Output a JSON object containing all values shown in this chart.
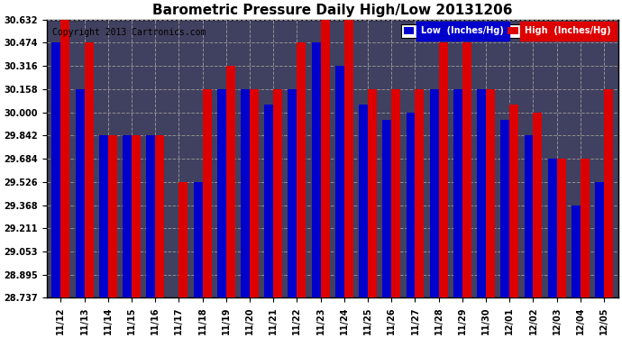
{
  "title": "Barometric Pressure Daily High/Low 20131206",
  "copyright": "Copyright 2013 Cartronics.com",
  "legend_low": "Low  (Inches/Hg)",
  "legend_high": "High  (Inches/Hg)",
  "dates": [
    "11/12",
    "11/13",
    "11/14",
    "11/15",
    "11/16",
    "11/17",
    "11/18",
    "11/19",
    "11/20",
    "11/21",
    "11/22",
    "11/23",
    "11/24",
    "11/25",
    "11/26",
    "11/27",
    "11/28",
    "11/29",
    "11/30",
    "12/01",
    "12/02",
    "12/03",
    "12/04",
    "12/05"
  ],
  "low": [
    30.474,
    30.158,
    29.842,
    29.842,
    29.842,
    28.737,
    29.526,
    30.158,
    30.158,
    30.053,
    30.158,
    30.474,
    30.316,
    30.053,
    29.947,
    30.0,
    30.158,
    30.158,
    30.158,
    29.947,
    29.842,
    29.684,
    29.368,
    29.526
  ],
  "high": [
    30.632,
    30.474,
    29.842,
    29.842,
    29.842,
    29.526,
    30.158,
    30.316,
    30.158,
    30.158,
    30.474,
    30.632,
    30.632,
    30.158,
    30.158,
    30.158,
    30.474,
    30.474,
    30.158,
    30.053,
    30.0,
    29.684,
    29.684,
    30.158
  ],
  "ymin": 28.737,
  "ymax": 30.632,
  "yticks": [
    28.737,
    28.895,
    29.053,
    29.211,
    29.368,
    29.526,
    29.684,
    29.842,
    30.0,
    30.158,
    30.316,
    30.474,
    30.632
  ],
  "bar_width": 0.38,
  "low_color": "#0000cc",
  "high_color": "#dd0000",
  "plot_bg_color": "#404060",
  "fig_bg_color": "#ffffff",
  "grid_color": "#909090",
  "title_color": "#000000",
  "title_fontsize": 11,
  "tick_fontsize": 7,
  "copyright_fontsize": 7
}
